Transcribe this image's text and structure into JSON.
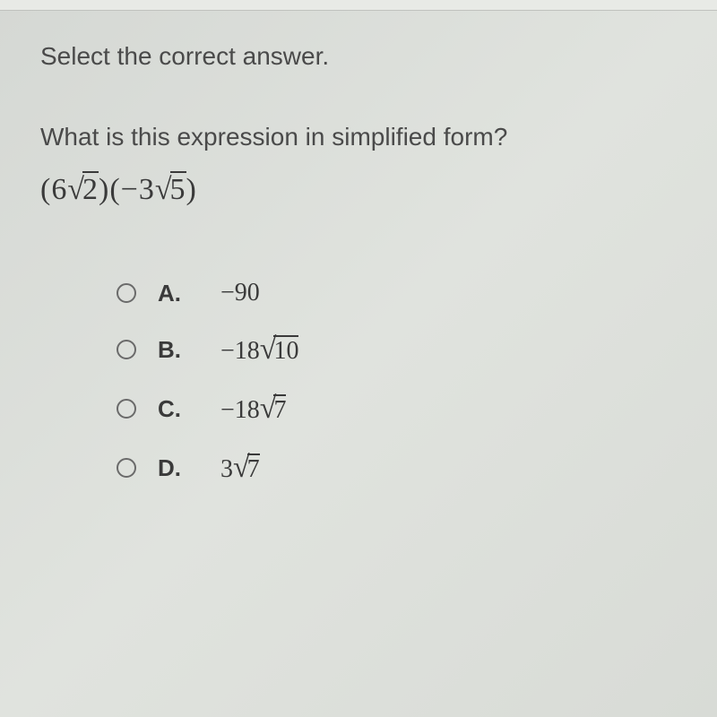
{
  "instruction": "Select the correct answer.",
  "question": "What is this expression in simplified form?",
  "expression": {
    "term1_coef": "6",
    "term1_radicand": "2",
    "term2_coef": "−3",
    "term2_radicand": "5"
  },
  "options": [
    {
      "letter": "A.",
      "prefix": "−90",
      "radicand": ""
    },
    {
      "letter": "B.",
      "prefix": "−18",
      "radicand": "10"
    },
    {
      "letter": "C.",
      "prefix": "−18",
      "radicand": "7"
    },
    {
      "letter": "D.",
      "prefix": "3",
      "radicand": "7"
    }
  ],
  "colors": {
    "text": "#4a4a4a",
    "text_dark": "#3a3a3a",
    "radio_border": "#6a6a6a",
    "background": "#d8dbd6"
  },
  "fonts": {
    "body_size": 28,
    "expression_size": 34,
    "option_value_size": 28
  }
}
